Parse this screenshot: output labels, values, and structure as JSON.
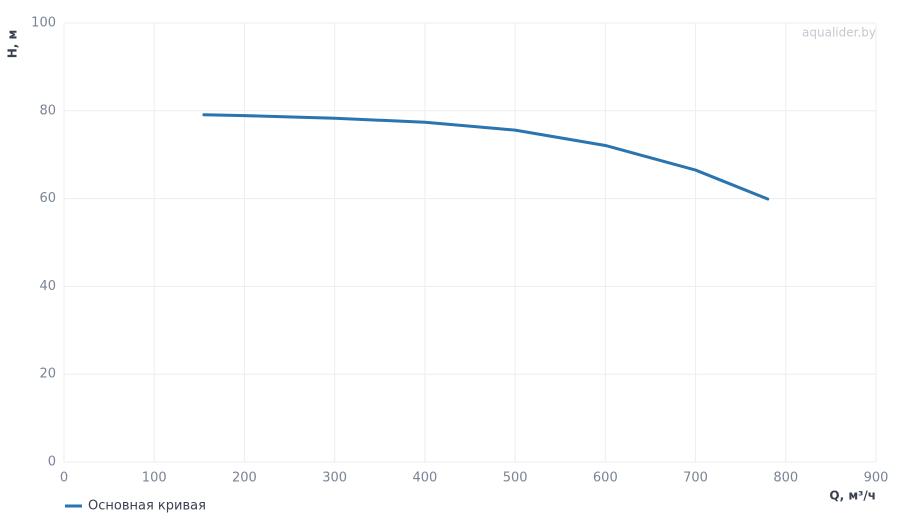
{
  "chart_data": {
    "type": "line",
    "watermark": "aqualider.by",
    "x_label": "Q, м³/ч",
    "y_label": "H, м",
    "x": [
      155,
      200,
      300,
      400,
      500,
      600,
      700,
      780
    ],
    "series": [
      {
        "name": "Основная кривая",
        "color": "#2a74b0",
        "values": [
          79.1,
          78.9,
          78.3,
          77.4,
          75.6,
          72.1,
          66.5,
          59.9
        ]
      }
    ],
    "xlim": [
      0,
      900
    ],
    "xticks": [
      0,
      100,
      200,
      300,
      400,
      500,
      600,
      700,
      800,
      900
    ],
    "ylim": [
      0,
      100
    ],
    "yticks": [
      0,
      20,
      40,
      60,
      80,
      100
    ],
    "grid": true
  }
}
